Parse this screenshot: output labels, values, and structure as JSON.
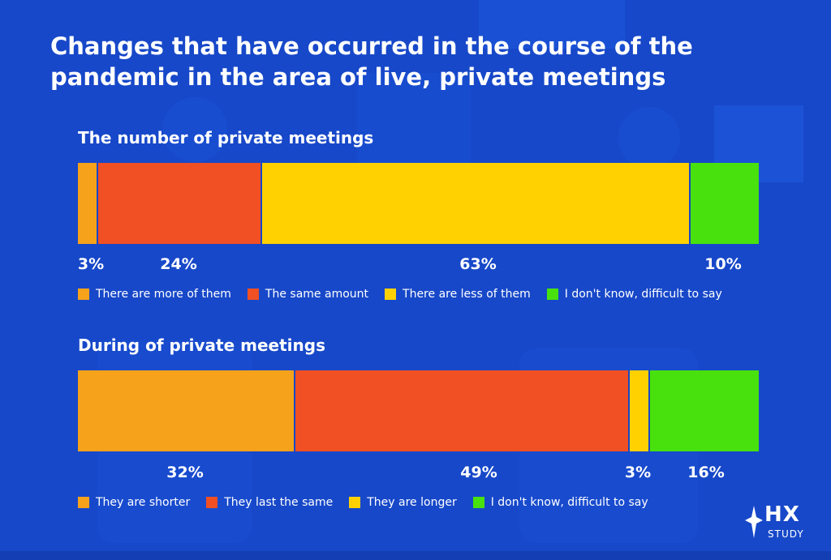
{
  "title": "Changes that have occurred in the course of the pandemic in the area of live, private meetings",
  "logo": {
    "main": "HX",
    "sub": "STUDY"
  },
  "colors": {
    "background": "#1748c9",
    "orange": "#f7a21b",
    "red": "#f05023",
    "yellow": "#ffd100",
    "green": "#48e10d"
  },
  "chart_data": [
    {
      "type": "bar",
      "orientation": "horizontal-stacked",
      "title": "The number of private meetings",
      "series": [
        {
          "name": "There are more of them",
          "value": 3,
          "label": "3%",
          "color": "#f7a21b"
        },
        {
          "name": "The same amount",
          "value": 24,
          "label": "24%",
          "color": "#f05023"
        },
        {
          "name": "There are less of them",
          "value": 63,
          "label": "63%",
          "color": "#ffd100"
        },
        {
          "name": "I don't know, difficult to say",
          "value": 10,
          "label": "10%",
          "color": "#48e10d"
        }
      ]
    },
    {
      "type": "bar",
      "orientation": "horizontal-stacked",
      "title": "During of private meetings",
      "series": [
        {
          "name": "They are shorter",
          "value": 32,
          "label": "32%",
          "color": "#f7a21b"
        },
        {
          "name": "They last the same",
          "value": 49,
          "label": "49%",
          "color": "#f05023"
        },
        {
          "name": "They are longer",
          "value": 3,
          "label": "3%",
          "color": "#ffd100"
        },
        {
          "name": "I don't know, difficult to say",
          "value": 16,
          "label": "16%",
          "color": "#48e10d"
        }
      ]
    }
  ]
}
